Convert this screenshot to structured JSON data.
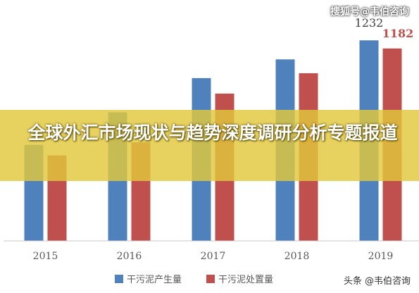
{
  "chart_data": {
    "type": "bar",
    "categories": [
      "2015",
      "2016",
      "2017",
      "2018",
      "2019"
    ],
    "series": [
      {
        "name": "干污泥产生量",
        "color": "#4f81bd",
        "values": [
          590,
          790,
          1000,
          1115,
          1232
        ]
      },
      {
        "name": "干污泥处置量",
        "color": "#c0504d",
        "values": [
          525,
          605,
          905,
          1030,
          1182
        ]
      }
    ],
    "data_labels": {
      "series0_last": "1232",
      "series1_last": "1182"
    },
    "ylim": [
      0,
      1350
    ],
    "grid": false,
    "legend_position": "bottom"
  },
  "watermark_top": "搜狐号@韦伯咨询",
  "watermark_bottom": "头条 @韦伯咨询",
  "banner": {
    "title": "全球外汇市场现状与趋势深度调研分析专题报道"
  }
}
